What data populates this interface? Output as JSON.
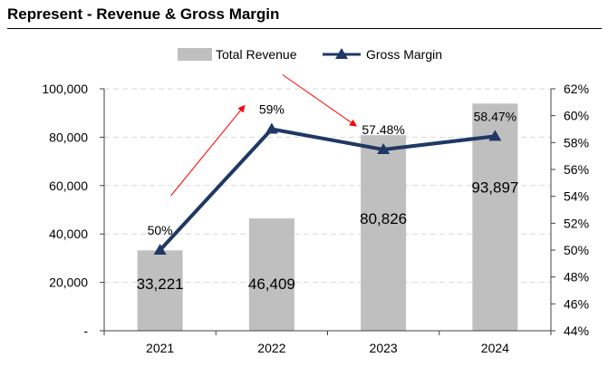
{
  "chart_data": {
    "type": "bar",
    "title": "Represent - Revenue & Gross Margin",
    "categories": [
      "2021",
      "2022",
      "2023",
      "2024"
    ],
    "series": [
      {
        "name": "Total Revenue",
        "type": "bar",
        "axis": "left",
        "values": [
          33221,
          46409,
          80826,
          93897
        ],
        "labels": [
          "33,221",
          "46,409",
          "80,826",
          "93,897"
        ],
        "color": "#bfbfbf"
      },
      {
        "name": "Gross Margin",
        "type": "line",
        "axis": "right",
        "values": [
          50.0,
          59.0,
          57.48,
          58.47
        ],
        "labels": [
          "50%",
          "59%",
          "57.48%",
          "58.47%"
        ],
        "color": "#1f3864"
      }
    ],
    "left_axis": {
      "min": 0,
      "max": 100000,
      "step": 20000,
      "ticks": [
        "-",
        "20,000",
        "40,000",
        "60,000",
        "80,000",
        "100,000"
      ]
    },
    "right_axis": {
      "min": 44,
      "max": 62,
      "step": 2,
      "ticks": [
        "44%",
        "46%",
        "48%",
        "50%",
        "52%",
        "54%",
        "56%",
        "58%",
        "60%",
        "62%"
      ]
    },
    "legend_position": "top",
    "grid": true,
    "arrow_color": "#ff0000"
  }
}
